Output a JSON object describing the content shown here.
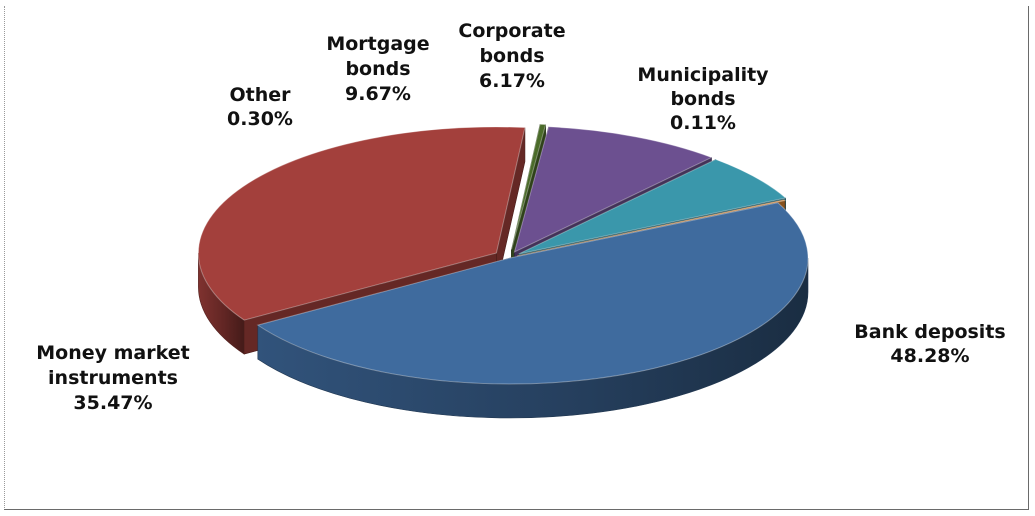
{
  "chart_data": {
    "type": "pie",
    "style": "3d-exploded",
    "title": "",
    "legend": "none",
    "slices": [
      {
        "label": "Bank deposits",
        "value": 48.28,
        "value_label": "48.28%",
        "color": "#3f6b9e",
        "label_lines": [
          "Bank deposits"
        ]
      },
      {
        "label": "Money market instruments",
        "value": 35.47,
        "value_label": "35.47%",
        "color": "#a3403c",
        "label_lines": [
          "Money market",
          "instruments"
        ]
      },
      {
        "label": "Other",
        "value": 0.3,
        "value_label": "0.30%",
        "color": "#4b6b2a",
        "label_lines": [
          "Other"
        ]
      },
      {
        "label": "Mortgage bonds",
        "value": 9.67,
        "value_label": "9.67%",
        "color": "#6c5090",
        "label_lines": [
          "Mortgage",
          "bonds"
        ]
      },
      {
        "label": "Corporate bonds",
        "value": 6.17,
        "value_label": "6.17%",
        "color": "#3a97ab",
        "label_lines": [
          "Corporate",
          "bonds"
        ]
      },
      {
        "label": "Municipality bonds",
        "value": 0.11,
        "value_label": "0.11%",
        "color": "#d9822e",
        "label_lines": [
          "Municipality",
          "bonds"
        ]
      }
    ]
  }
}
